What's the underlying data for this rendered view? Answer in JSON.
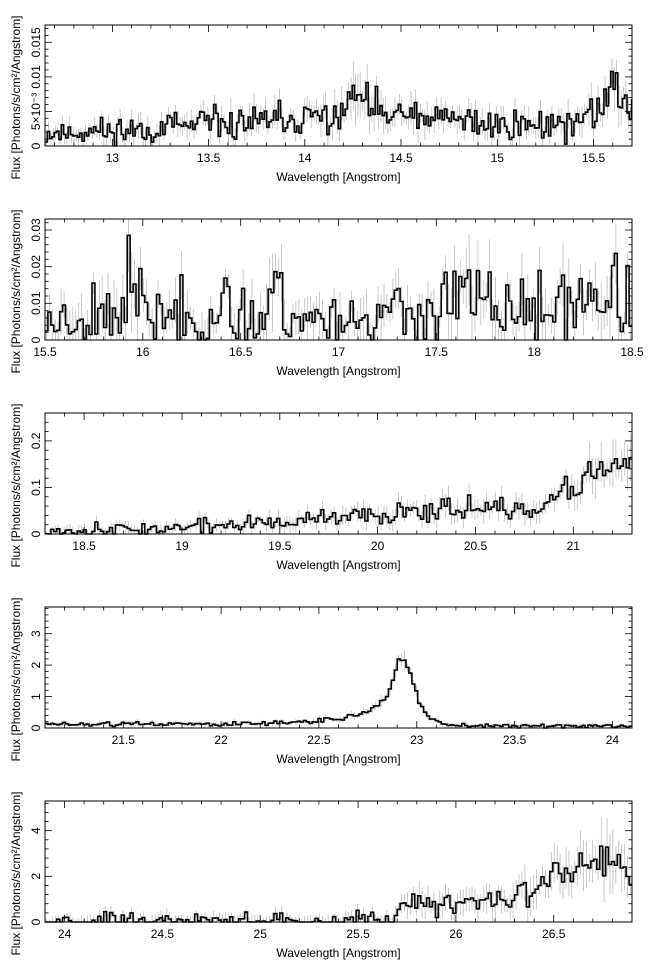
{
  "chart_data": [
    {
      "type": "line",
      "style": "step-histogram-with-error-bars",
      "xlabel": "Wavelength [Angstrom]",
      "ylabel": "Flux [Photons/s/cm²/Angstrom]",
      "xlim": [
        12.65,
        15.7
      ],
      "ylim": [
        0,
        0.0175
      ],
      "xticks": [
        13,
        13.5,
        14,
        14.5,
        15,
        15.5
      ],
      "xtick_labels": [
        "13",
        "13.5",
        "14",
        "14.5",
        "15",
        "15.5"
      ],
      "yticks": [
        0,
        0.005,
        0.01,
        0.015
      ],
      "ytick_labels": [
        "0",
        "5×10⁻³",
        "0.01",
        "0.015"
      ],
      "profile": {
        "x": [
          12.65,
          13.0,
          13.5,
          14.0,
          14.2,
          14.27,
          14.35,
          14.5,
          15.0,
          15.2,
          15.45,
          15.55,
          15.62,
          15.7
        ],
        "y": [
          0.0018,
          0.0022,
          0.003,
          0.0038,
          0.0045,
          0.008,
          0.005,
          0.0042,
          0.0032,
          0.003,
          0.0035,
          0.006,
          0.009,
          0.005
        ]
      },
      "noise": 0.0012,
      "err": 0.0025,
      "bin_width": 0.012,
      "seed": 11
    },
    {
      "type": "line",
      "style": "step-histogram-with-error-bars",
      "xlabel": "Wavelength [Angstrom]",
      "ylabel": "Flux [Photons/s/cm²/Angstrom]",
      "xlim": [
        15.5,
        18.5
      ],
      "ylim": [
        0,
        0.033
      ],
      "xticks": [
        15.5,
        16,
        16.5,
        17,
        17.5,
        18,
        18.5
      ],
      "xtick_labels": [
        "15.5",
        "16",
        "16.5",
        "17",
        "17.5",
        "18",
        "18.5"
      ],
      "yticks": [
        0,
        0.01,
        0.02,
        0.03
      ],
      "ytick_labels": [
        "0",
        "0.01",
        "0.02",
        "0.03"
      ],
      "profile": {
        "x": [
          15.5,
          15.9,
          15.92,
          16.0,
          16.6,
          16.68,
          16.75,
          17.0,
          17.5,
          17.65,
          17.8,
          18.0,
          18.38,
          18.5
        ],
        "y": [
          0.005,
          0.009,
          0.018,
          0.007,
          0.006,
          0.015,
          0.006,
          0.006,
          0.007,
          0.012,
          0.009,
          0.007,
          0.012,
          0.008
        ]
      },
      "noise": 0.0045,
      "err": 0.008,
      "bin_width": 0.015,
      "seed": 23
    },
    {
      "type": "line",
      "style": "step-histogram-with-error-bars",
      "xlabel": "Wavelength [Angstrom]",
      "ylabel": "Flux [Photons/s/cm²/Angstrom]",
      "xlim": [
        18.3,
        21.3
      ],
      "ylim": [
        0,
        0.26
      ],
      "xticks": [
        18.5,
        19,
        19.5,
        20,
        20.5,
        21
      ],
      "xtick_labels": [
        "18.5",
        "19",
        "19.5",
        "20",
        "20.5",
        "21"
      ],
      "yticks": [
        0,
        0.1,
        0.2
      ],
      "ytick_labels": [
        "0",
        "0.1",
        "0.2"
      ],
      "profile": {
        "x": [
          18.3,
          18.8,
          19.3,
          19.7,
          20.0,
          20.2,
          20.5,
          20.7,
          20.9,
          21.0,
          21.1,
          21.3
        ],
        "y": [
          0.008,
          0.01,
          0.02,
          0.03,
          0.04,
          0.055,
          0.06,
          0.045,
          0.06,
          0.1,
          0.14,
          0.15
        ]
      },
      "noise": 0.012,
      "err": 0.03,
      "bin_width": 0.015,
      "seed": 37
    },
    {
      "type": "line",
      "style": "step-histogram-with-error-bars",
      "xlabel": "Wavelength [Angstrom]",
      "ylabel": "Flux [Photons/s/cm²/Angstrom]",
      "xlim": [
        21.1,
        24.1
      ],
      "ylim": [
        0,
        3.85
      ],
      "xticks": [
        21.5,
        22,
        22.5,
        23,
        23.5,
        24
      ],
      "xtick_labels": [
        "21.5",
        "22",
        "22.5",
        "23",
        "23.5",
        "24"
      ],
      "yticks": [
        0,
        1,
        2,
        3
      ],
      "ytick_labels": [
        "0",
        "1",
        "2",
        "3"
      ],
      "profile": {
        "x": [
          21.1,
          22.0,
          22.4,
          22.6,
          22.75,
          22.85,
          22.92,
          22.96,
          23.0,
          23.05,
          23.15,
          23.5,
          24.1
        ],
        "y": [
          0.12,
          0.13,
          0.18,
          0.3,
          0.5,
          1.0,
          2.3,
          1.8,
          1.0,
          0.4,
          0.1,
          0.05,
          0.05
        ]
      },
      "noise": 0.05,
      "err": 0.2,
      "bin_width": 0.015,
      "seed": 51
    },
    {
      "type": "line",
      "style": "step-histogram-with-error-bars",
      "xlabel": "Wavelength [Angstrom]",
      "ylabel": "Flux [Photons/s/cm²/Angstrom]",
      "xlim": [
        23.9,
        26.9
      ],
      "ylim": [
        0,
        5.3
      ],
      "xticks": [
        24,
        24.5,
        25,
        25.5,
        26,
        26.5
      ],
      "xtick_labels": [
        "24",
        "24.5",
        "25",
        "25.5",
        "26",
        "26.5"
      ],
      "yticks": [
        0,
        2,
        4
      ],
      "ytick_labels": [
        "0",
        "2",
        "4"
      ],
      "profile": {
        "x": [
          23.9,
          25.0,
          25.5,
          25.7,
          25.75,
          25.8,
          26.0,
          26.2,
          26.5,
          26.7,
          26.8,
          26.9
        ],
        "y": [
          0.05,
          0.06,
          0.12,
          0.3,
          1.0,
          0.9,
          0.8,
          1.0,
          1.8,
          2.4,
          3.0,
          1.5
        ]
      },
      "noise": 0.3,
      "err": 0.8,
      "bin_width": 0.015,
      "seed": 67
    }
  ]
}
